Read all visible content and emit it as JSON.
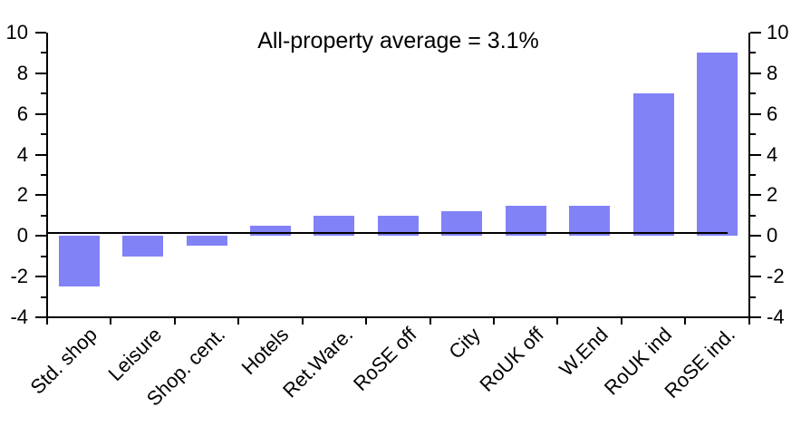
{
  "chart_data": {
    "type": "bar",
    "title": "All-property average = 3.1%",
    "categories": [
      "Std. shop",
      "Leisure",
      "Shop. cent.",
      "Hotels",
      "Ret.Ware.",
      "RoSE off",
      "City",
      "RoUK off",
      "W.End",
      "RoUK ind",
      "RoSE ind."
    ],
    "values": [
      -2.5,
      -1,
      -0.5,
      0.5,
      1,
      1,
      1.2,
      1.5,
      1.5,
      7,
      9
    ],
    "xlabel": "",
    "ylabel": "",
    "ylim": [
      -4,
      10
    ],
    "y_major_ticks": [
      10,
      8,
      6,
      4,
      2,
      0,
      -2,
      -4
    ],
    "y_minor_ticks": [
      9,
      7,
      5,
      3,
      1,
      -1,
      -3
    ],
    "y_axis_sides": [
      "left",
      "right"
    ],
    "grid": "off",
    "legend": "none",
    "bar_color": "#8182f6",
    "axis_color": "#000000",
    "baseline_value": 0.15
  }
}
